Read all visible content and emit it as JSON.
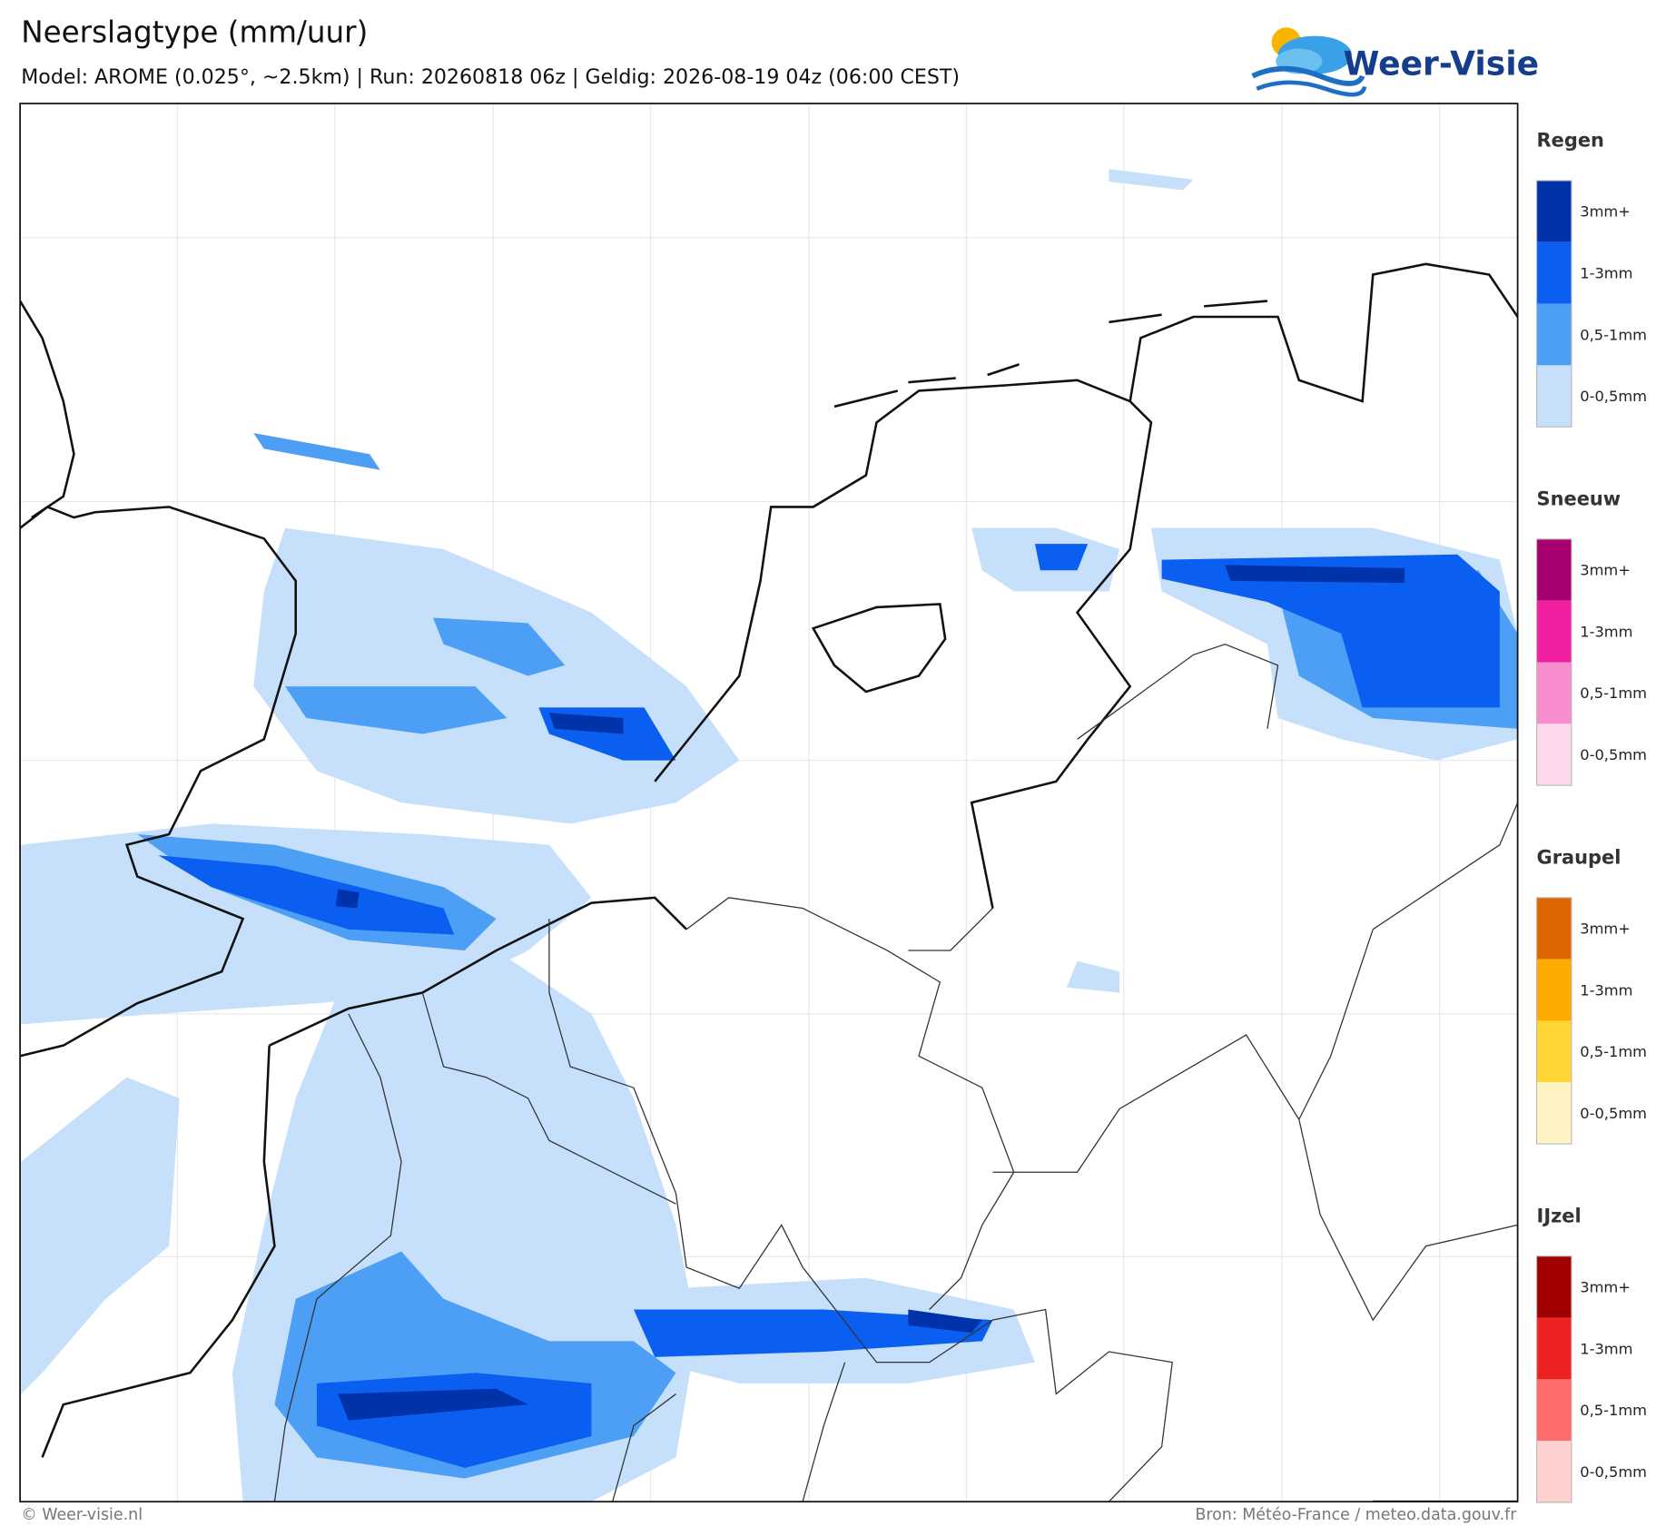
{
  "header": {
    "title": "Neerslagtype (mm/uur)",
    "subtitle": "Model: AROME (0.025°, ~2.5km)  |  Run: 20260818 06z  |  Geldig: 2026-08-19 04z (06:00 CEST)"
  },
  "logo": {
    "text": "Weer-Visie"
  },
  "legend": {
    "groups": [
      {
        "title": "Regen",
        "items": [
          {
            "label": "3mm+",
            "color": "#0033aa"
          },
          {
            "label": "1-3mm",
            "color": "#0a5ef0"
          },
          {
            "label": "0,5-1mm",
            "color": "#4d9ff5"
          },
          {
            "label": "0-0,5mm",
            "color": "#c6e0fb"
          }
        ]
      },
      {
        "title": "Sneeuw",
        "items": [
          {
            "label": "3mm+",
            "color": "#a8006e"
          },
          {
            "label": "1-3mm",
            "color": "#f020a0"
          },
          {
            "label": "0,5-1mm",
            "color": "#f78dcc"
          },
          {
            "label": "0-0,5mm",
            "color": "#fdd9ee"
          }
        ]
      },
      {
        "title": "Graupel",
        "items": [
          {
            "label": "3mm+",
            "color": "#dd6600"
          },
          {
            "label": "1-3mm",
            "color": "#ffaa00"
          },
          {
            "label": "0,5-1mm",
            "color": "#ffd633"
          },
          {
            "label": "0-0,5mm",
            "color": "#fff3c4"
          }
        ]
      },
      {
        "title": "IJzel",
        "items": [
          {
            "label": "3mm+",
            "color": "#a00000"
          },
          {
            "label": "1-3mm",
            "color": "#ee2222"
          },
          {
            "label": "0,5-1mm",
            "color": "#ff6b6b"
          },
          {
            "label": "0-0,5mm",
            "color": "#ffd0d0"
          }
        ]
      }
    ]
  },
  "footer": {
    "left": "© Weer-visie.nl",
    "right": "Bron: Météo-France / meteo.data.gouv.fr"
  }
}
